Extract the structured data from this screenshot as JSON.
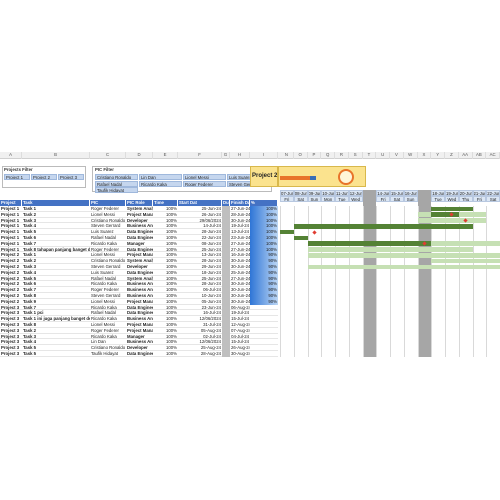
{
  "column_letters": [
    "A",
    "B",
    "C",
    "D",
    "E",
    "F",
    "G",
    "H",
    "I",
    "N",
    "O",
    "P",
    "Q",
    "R",
    "S",
    "T",
    "U",
    "V",
    "W",
    "X",
    "Y",
    "Z",
    "AA",
    "AB",
    "AC"
  ],
  "projects_filter": {
    "title": "Projects Filter",
    "items": [
      "Project 1",
      "Project 2",
      "Project 3"
    ]
  },
  "pic_filter": {
    "title": "PIC Filter",
    "items": [
      "Cristiano Ronaldo",
      "Lin Dan",
      "Lionel Messi",
      "Luis Suarez",
      "Rafael Nadal",
      "Ricardo Kaka",
      "Roger Federer",
      "Steven Gerrard",
      "Taufik Hidayat"
    ]
  },
  "summary": {
    "title": "Project 2"
  },
  "table": {
    "headers": [
      "Project",
      "Task",
      "PIC",
      "PIC Role",
      "Time",
      "Start Dat",
      "Duratio",
      "Finish Dat",
      "%"
    ],
    "rows": [
      [
        "Project 1",
        "Task 1",
        "Roger Federer",
        "System Analyst",
        "100%",
        "25-Jun-24",
        "",
        "27-Jun-24",
        "100%"
      ],
      [
        "Project 1",
        "Task 2",
        "Lionel Messi",
        "Project Manager",
        "100%",
        "26-Jun-24",
        "",
        "28-Jun-24",
        "100%"
      ],
      [
        "Project 1",
        "Task 3",
        "Cristiano Ronaldo",
        "Developer",
        "100%",
        "29/06/2024",
        "",
        "30-Jun-24",
        "100%"
      ],
      [
        "Project 1",
        "Task 4",
        "Steven Gerrard",
        "Business Analyst",
        "100%",
        "14-Jul-24",
        "",
        "19-Jul-24",
        "100%"
      ],
      [
        "Project 1",
        "Task 5",
        "Luis Suarez",
        "Data Engineer",
        "100%",
        "28-Jun-24",
        "",
        "13-Jul-24",
        "100%"
      ],
      [
        "Project 1",
        "Task 6",
        "Rafael Nadal",
        "Data Engineer",
        "100%",
        "22-Jun-24",
        "",
        "23-Jun-24",
        "100%"
      ],
      [
        "Project 1",
        "Task 7",
        "Ricardo Kaka",
        "Manager",
        "100%",
        "08-Jun-24",
        "",
        "27-Jun-24",
        "100%"
      ],
      [
        "Project 1",
        "Task 8 tahapan panjang banget deh sepertinya",
        "Roger Federer",
        "Data Engineer",
        "100%",
        "25-Jun-24",
        "",
        "27-Jun-24",
        "100%"
      ],
      [
        "Project 2",
        "Task 1",
        "Lionel Messi",
        "Project Manager",
        "100%",
        "13-Jun-24",
        "",
        "16-Jun-24",
        "90%"
      ],
      [
        "Project 2",
        "Task 2",
        "Cristiano Ronaldo",
        "System Analyst",
        "100%",
        "28-Jun-24",
        "",
        "30-Jun-24",
        "90%"
      ],
      [
        "Project 2",
        "Task 3",
        "Steven Gerrard",
        "Developer",
        "100%",
        "29-Jun-24",
        "",
        "30-Jun-24",
        "90%"
      ],
      [
        "Project 2",
        "Task 4",
        "Luis Suarez",
        "Data Engineer",
        "100%",
        "18-Jun-24",
        "",
        "25-Jun-24",
        "90%"
      ],
      [
        "Project 2",
        "Task 5",
        "Rafael Nadal",
        "System Analyst",
        "100%",
        "25-Jun-24",
        "",
        "27-Jun-24",
        "90%"
      ],
      [
        "Project 2",
        "Task 6",
        "Ricardo Kaka",
        "Business Analyst",
        "100%",
        "28-Jun-24",
        "",
        "30-Jun-24",
        "90%"
      ],
      [
        "Project 2",
        "Task 7",
        "Roger Federer",
        "Business Analyst",
        "100%",
        "06-Jul-24",
        "",
        "30-Jun-24",
        "90%"
      ],
      [
        "Project 2",
        "Task 8",
        "Steven Gerrard",
        "Business Analyst",
        "100%",
        "10-Jun-24",
        "",
        "30-Jun-24",
        "90%"
      ],
      [
        "Project 2",
        "Task 9",
        "Lionel Messi",
        "Project Manager",
        "100%",
        "05-Jun-24",
        "",
        "30-Jun-24",
        "90%"
      ],
      [
        "Project 3",
        "Task 7",
        "Ricardo Kaka",
        "Data Engineer",
        "100%",
        "23-Jun-24",
        "",
        "06-Aug-24",
        ""
      ],
      [
        "Project 3",
        "Task 1 pci",
        "Rafael Nadal",
        "Data Engineer",
        "100%",
        "16-Jul-24",
        "",
        "19-Jul-24",
        ""
      ],
      [
        "Project 3",
        "Task 1 ini juga panjang banget deh sepertinya",
        "Ricardo Kaka",
        "Business Analyst",
        "100%",
        "12/06/2024",
        "",
        "15-Jul-24",
        ""
      ],
      [
        "Project 3",
        "Task 8",
        "Lionel Messi",
        "Project Manager",
        "100%",
        "31-Jul-24",
        "",
        "12-Aug-24",
        ""
      ],
      [
        "Project 3",
        "Task 2",
        "Roger Federer",
        "Project Manager",
        "100%",
        "05-Aug-24",
        "",
        "07-Aug-24",
        ""
      ],
      [
        "Project 3",
        "Task 3",
        "Ricardo Kaka",
        "Manager",
        "100%",
        "02-Jul-24",
        "",
        "04-Jul-24",
        ""
      ],
      [
        "Project 3",
        "Task 4",
        "Lin Dan",
        "Business Analyst",
        "100%",
        "12/06/2024",
        "",
        "15-Jul-24",
        ""
      ],
      [
        "Project 3",
        "Task 5",
        "Cristiano Ronaldo",
        "Developer",
        "100%",
        "25-Aug-24",
        "",
        "26-Aug-24",
        ""
      ],
      [
        "Project 3",
        "Task 5",
        "Taufik Hidayat",
        "Data Engineer",
        "100%",
        "28-Aug-24",
        "",
        "30-Aug-24",
        ""
      ]
    ]
  },
  "gantt": {
    "dates": [
      "07-Jun",
      "08-Jun",
      "09-Jun",
      "10-Jun",
      "11-Jun",
      "12-Jun",
      "13-Jun",
      "14-Jun",
      "15-Jun",
      "16-Jun",
      "17-Jun",
      "18-Jun",
      "19-Jun",
      "20-Jun",
      "21-Jun",
      "22-Jun"
    ],
    "days": [
      "Fri",
      "Sat",
      "Sun",
      "Mon",
      "Tue",
      "Wed",
      "Thu",
      "Fri",
      "Sat",
      "Sun",
      "Mon",
      "Tue",
      "Wed",
      "Thu",
      "Fri",
      "Sat"
    ]
  }
}
